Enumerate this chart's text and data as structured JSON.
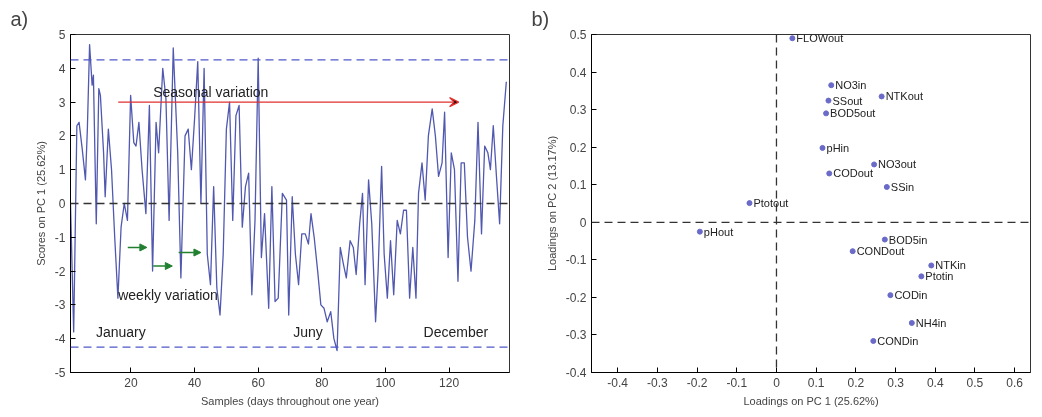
{
  "chart_data": [
    {
      "type": "line",
      "title": "a)",
      "xlabel": "Samples (days throughout one year)",
      "ylabel": "Scores on PC 1 (25.62%)",
      "xlim": [
        1,
        139
      ],
      "ylim": [
        -5,
        5
      ],
      "xticks": [
        20,
        40,
        60,
        80,
        100,
        120
      ],
      "yticks": [
        -5,
        -4,
        -3,
        -2,
        -1,
        0,
        1,
        2,
        3,
        4,
        5
      ],
      "grid": false,
      "line_style": "solid",
      "marker": "none",
      "series": [
        {
          "color": "#5058b0",
          "x": [
            1,
            2,
            3,
            3.7,
            4.7,
            5.7,
            6.3,
            7,
            7.8,
            8.2,
            9.1,
            9.9,
            10.4,
            11.4,
            11.9,
            12.9,
            13.9,
            14.9,
            15.9,
            16.9,
            17.9,
            18.9,
            19.9,
            20.9,
            21.6,
            22.5,
            23.5,
            24.7,
            25.8,
            26.8,
            27.9,
            28.7,
            30,
            31,
            32,
            33.3,
            34.7,
            35.7,
            37,
            38,
            39,
            40,
            41,
            42,
            43,
            44,
            45,
            46,
            47,
            48,
            49,
            50,
            51,
            52,
            53,
            54,
            55,
            56,
            57,
            58,
            59,
            60,
            61,
            62,
            63.3,
            64.3,
            65.3,
            66.3,
            67.6,
            68.9,
            69.6,
            70.7,
            71.7,
            72.7,
            73.7,
            74.8,
            75.8,
            76.6,
            77.6,
            78.7,
            79.7,
            80.7,
            81.7,
            82.8,
            83.8,
            84.8,
            85.8,
            86.8,
            87.7,
            88.9,
            89.9,
            90.8,
            91.9,
            92.8,
            93.6,
            94.7,
            95.7,
            96.9,
            97.7,
            98.8,
            99.6,
            100.6,
            101.6,
            102.6,
            103.7,
            104.7,
            105.7,
            106.6,
            107.6,
            108.6,
            109.6,
            110.4,
            111.5,
            112.5,
            113.5,
            114.7,
            115.7,
            116.7,
            117.8,
            118.6,
            119.7,
            120.7,
            121.7,
            122.8,
            123.8,
            124.8,
            125.8,
            126.9,
            128.1,
            129.1,
            130.2,
            131.2,
            132.2,
            133,
            133.9,
            134.9,
            135.9,
            136.9,
            138
          ],
          "values": [
            0,
            -3.8,
            2.3,
            2.4,
            1.6,
            0.7,
            2.2,
            4.7,
            3.5,
            3.8,
            -0.6,
            3.4,
            3.2,
            1.5,
            0.2,
            2.2,
            1.0,
            -1.0,
            -2.8,
            -0.7,
            0.0,
            -0.5,
            3.2,
            1.8,
            1.7,
            2.4,
            1.0,
            -0.3,
            2.9,
            -2.0,
            2.4,
            1.5,
            4.0,
            3.1,
            -0.5,
            4.6,
            1.5,
            -2.2,
            2.0,
            2.2,
            1.0,
            2.5,
            4.2,
            0.0,
            4.0,
            -1.5,
            -2.4,
            0.5,
            -2.5,
            -3.3,
            -1.5,
            2.2,
            3.0,
            -0.5,
            2.6,
            2.9,
            -0.7,
            0.5,
            0.9,
            -2.7,
            -0.5,
            4.3,
            -1.6,
            -0.3,
            -3.1,
            0.5,
            -2.9,
            -2.8,
            0.3,
            0.1,
            -3.3,
            0.2,
            -1.5,
            -2.4,
            -0.9,
            -0.9,
            -1.2,
            -0.3,
            -1.0,
            -2.0,
            -3.0,
            -3.1,
            -3.5,
            -3.2,
            -4.0,
            -4.35,
            -1.3,
            -1.8,
            -2.2,
            -1.1,
            -1.3,
            -2.1,
            -0.6,
            0.3,
            -2.4,
            0.7,
            -0.6,
            -3.5,
            -2.0,
            1.1,
            -1.5,
            -2.8,
            -1.1,
            -2.7,
            -0.5,
            -0.9,
            -0.2,
            -0.2,
            -2.8,
            -1.3,
            -2.8,
            0.3,
            1.2,
            0.1,
            2.0,
            2.8,
            2.0,
            0.8,
            1.2,
            2.7,
            -1.6,
            1.5,
            1.0,
            -2.3,
            1.2,
            1.2,
            -1.0,
            -2.0,
            -0.5,
            2.4,
            -0.9,
            1.7,
            1.5,
            1.0,
            2.3,
            0.8,
            -0.6,
            2.3,
            3.6
          ]
        }
      ],
      "ref_lines": [
        {
          "axis": "y",
          "value": 4.25,
          "color": "#5058c8",
          "line_style": "dashed"
        },
        {
          "axis": "y",
          "value": -4.25,
          "color": "#5058c8",
          "line_style": "dashed"
        },
        {
          "axis": "y",
          "value": 0,
          "color": "#333333",
          "line_style": "dashed"
        }
      ],
      "annotations": [
        "Seasonal variation",
        "weekly variation",
        "January",
        "Juny",
        "December"
      ]
    },
    {
      "type": "scatter",
      "title": "b)",
      "xlabel": "Loadings on PC 1 (25.62%)",
      "ylabel": "Loadings on PC 2 (13.17%)",
      "xlim": [
        -0.466,
        0.64
      ],
      "ylim": [
        -0.4,
        0.5
      ],
      "xticks": [
        -0.4,
        -0.3,
        -0.2,
        -0.1,
        0,
        0.1,
        0.2,
        0.3,
        0.4,
        0.5,
        0.6
      ],
      "yticks": [
        -0.4,
        -0.3,
        -0.2,
        -0.1,
        0,
        0.1,
        0.2,
        0.3,
        0.4,
        0.5
      ],
      "grid": false,
      "marker": "circle",
      "series": [
        {
          "color": "#6a6ac8",
          "x": [
            0.04,
            0.138,
            0.265,
            0.131,
            0.125,
            0.116,
            0.246,
            0.133,
            0.278,
            -0.068,
            -0.193,
            0.273,
            0.192,
            0.39,
            0.365,
            0.287,
            0.341,
            0.244
          ],
          "values": [
            0.49,
            0.365,
            0.335,
            0.324,
            0.29,
            0.198,
            0.154,
            0.13,
            0.094,
            0.051,
            -0.025,
            -0.046,
            -0.077,
            -0.115,
            -0.144,
            -0.194,
            -0.268,
            -0.316
          ]
        }
      ],
      "ref_lines": [
        {
          "axis": "x",
          "value": 0,
          "color": "#333333",
          "line_style": "dashed"
        },
        {
          "axis": "y",
          "value": 0,
          "color": "#333333",
          "line_style": "dashed"
        }
      ],
      "annotations": [
        {
          "text": "FLOWout",
          "x": 0.04,
          "y": 0.49
        },
        {
          "text": "NO3in",
          "x": 0.138,
          "y": 0.365
        },
        {
          "text": "NTKout",
          "x": 0.265,
          "y": 0.335
        },
        {
          "text": "SSout",
          "x": 0.131,
          "y": 0.324
        },
        {
          "text": "BOD5out",
          "x": 0.125,
          "y": 0.29
        },
        {
          "text": "pHin",
          "x": 0.116,
          "y": 0.198
        },
        {
          "text": "NO3out",
          "x": 0.246,
          "y": 0.154
        },
        {
          "text": "CODout",
          "x": 0.133,
          "y": 0.13
        },
        {
          "text": "SSin",
          "x": 0.278,
          "y": 0.094
        },
        {
          "text": "Ptotout",
          "x": -0.068,
          "y": 0.051
        },
        {
          "text": "pHout",
          "x": -0.193,
          "y": -0.025
        },
        {
          "text": "BOD5in",
          "x": 0.273,
          "y": -0.046
        },
        {
          "text": "CONDout",
          "x": 0.192,
          "y": -0.077
        },
        {
          "text": "NTKin",
          "x": 0.39,
          "y": -0.115
        },
        {
          "text": "Ptotin",
          "x": 0.365,
          "y": -0.144
        },
        {
          "text": "CODin",
          "x": 0.287,
          "y": -0.194
        },
        {
          "text": "NH4in",
          "x": 0.341,
          "y": -0.268
        },
        {
          "text": "CONDin",
          "x": 0.244,
          "y": -0.316
        }
      ]
    }
  ]
}
